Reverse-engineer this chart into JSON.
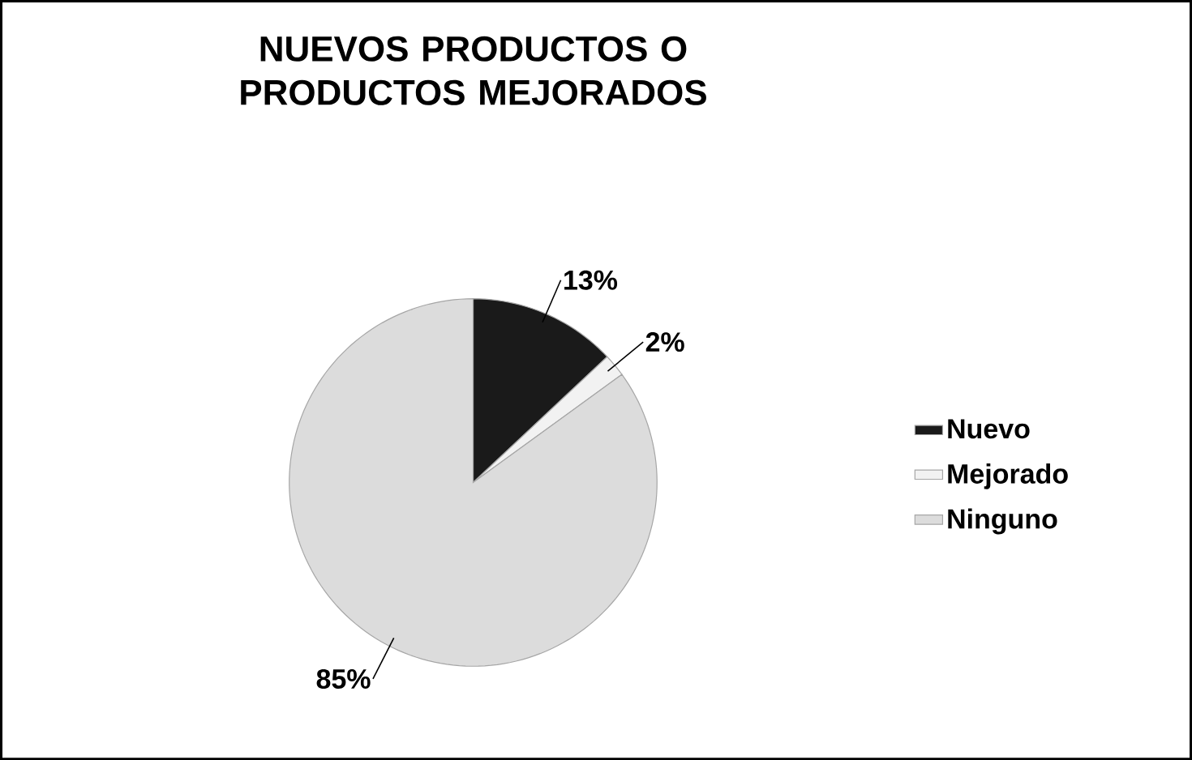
{
  "chart_data": {
    "type": "pie",
    "title": "NUEVOS PRODUCTOS O PRODUCTOS MEJORADOS",
    "categories": [
      "Nuevo",
      "Mejorado",
      "Ninguno"
    ],
    "values": [
      13,
      2,
      85
    ],
    "colors": [
      "#1a1a1a",
      "#f2f2f2",
      "#dcdcdc"
    ],
    "value_labels": [
      "13%",
      "2%",
      "85%"
    ],
    "legend": "right"
  }
}
